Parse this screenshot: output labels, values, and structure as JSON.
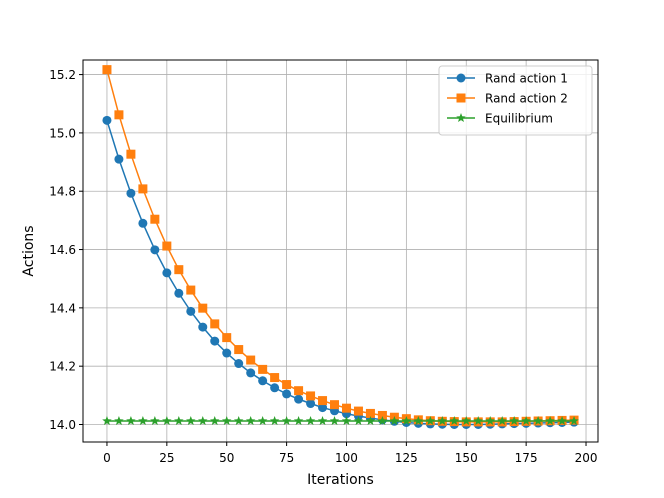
{
  "chart_data": {
    "type": "line",
    "title": "",
    "xlabel": "Iterations",
    "ylabel": "Actions",
    "xlim": [
      -10,
      205
    ],
    "ylim": [
      13.94,
      15.25
    ],
    "xticks": [
      0,
      25,
      50,
      75,
      100,
      125,
      150,
      175,
      200
    ],
    "yticks": [
      14.0,
      14.2,
      14.4,
      14.6,
      14.8,
      15.0,
      15.2
    ],
    "xtick_labels": [
      "0",
      "25",
      "50",
      "75",
      "100",
      "125",
      "150",
      "175",
      "200"
    ],
    "ytick_labels": [
      "14.0",
      "14.2",
      "14.4",
      "14.6",
      "14.8",
      "15.0",
      "15.2"
    ],
    "grid": true,
    "legend_position": "top-right",
    "x": [
      0,
      5,
      10,
      15,
      20,
      25,
      30,
      35,
      40,
      45,
      50,
      55,
      60,
      65,
      70,
      75,
      80,
      85,
      90,
      95,
      100,
      105,
      110,
      115,
      120,
      125,
      130,
      135,
      140,
      145,
      150,
      155,
      160,
      165,
      170,
      175,
      180,
      185,
      190,
      195
    ],
    "series": [
      {
        "name": "Rand action 1",
        "color": "#1f77b4",
        "marker": "circle",
        "values": [
          15.043,
          14.91,
          14.793,
          14.69,
          14.599,
          14.52,
          14.45,
          14.388,
          14.334,
          14.286,
          14.245,
          14.209,
          14.177,
          14.15,
          14.126,
          14.105,
          14.087,
          14.072,
          14.058,
          14.047,
          14.037,
          14.029,
          14.022,
          14.016,
          14.011,
          14.007,
          14.004,
          14.002,
          14.001,
          14.0,
          14.0,
          14.0,
          14.001,
          14.002,
          14.003,
          14.004,
          14.005,
          14.006,
          14.007,
          14.008
        ]
      },
      {
        "name": "Rand action 2",
        "color": "#ff7f0e",
        "marker": "square",
        "values": [
          15.217,
          15.062,
          14.927,
          14.808,
          14.704,
          14.612,
          14.531,
          14.461,
          14.399,
          14.345,
          14.298,
          14.257,
          14.221,
          14.189,
          14.161,
          14.137,
          14.116,
          14.098,
          14.082,
          14.068,
          14.056,
          14.046,
          14.038,
          14.031,
          14.025,
          14.02,
          14.016,
          14.013,
          14.011,
          14.01,
          14.009,
          14.009,
          14.009,
          14.009,
          14.01,
          14.011,
          14.012,
          14.013,
          14.014,
          14.015
        ]
      },
      {
        "name": "Equilibrium",
        "color": "#2ca02c",
        "marker": "star",
        "values": [
          14.012,
          14.012,
          14.012,
          14.012,
          14.012,
          14.012,
          14.012,
          14.012,
          14.012,
          14.012,
          14.012,
          14.012,
          14.012,
          14.012,
          14.012,
          14.012,
          14.012,
          14.012,
          14.012,
          14.012,
          14.012,
          14.012,
          14.012,
          14.012,
          14.012,
          14.012,
          14.012,
          14.012,
          14.012,
          14.012,
          14.012,
          14.012,
          14.012,
          14.012,
          14.012,
          14.012,
          14.012,
          14.012,
          14.012,
          14.012
        ]
      }
    ]
  }
}
